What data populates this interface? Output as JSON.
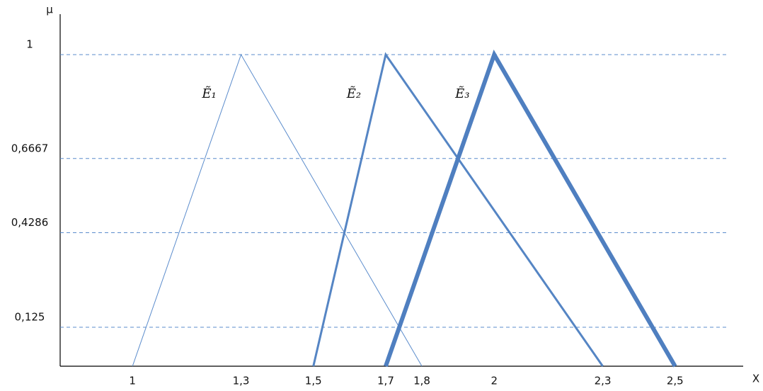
{
  "chart_data": {
    "type": "line",
    "y_label": "μ",
    "x_label": "X",
    "xlim": [
      0.8,
      2.7
    ],
    "ylim": [
      0,
      1.13
    ],
    "xticks": [
      1,
      {
        "value": 1.3,
        "label": "1,3"
      },
      {
        "value": 1.5,
        "label": "1,5"
      },
      {
        "value": 1.7,
        "label": "1,7"
      },
      {
        "value": 1.8,
        "label": "1,8"
      },
      2,
      {
        "value": 2.3,
        "label": "2,3"
      },
      {
        "value": 2.5,
        "label": "2,5"
      }
    ],
    "yticks": [
      {
        "value": 0.125,
        "label": "0,125"
      },
      {
        "value": 0.4286,
        "label": "0,4286"
      },
      {
        "value": 0.6667,
        "label": "0,6667"
      },
      1
    ],
    "grid": true,
    "series": [
      {
        "name": "Ẽ₁",
        "color": "#5b8ccc",
        "line_width": 1,
        "x": [
          1,
          1.3,
          1.8
        ],
        "values": [
          0,
          1,
          0
        ]
      },
      {
        "name": "Ẽ₂",
        "color": "#5585c4",
        "line_width": 3,
        "x": [
          1.5,
          1.7,
          2.3
        ],
        "values": [
          0,
          1,
          0
        ]
      },
      {
        "name": "Ẽ₃",
        "color": "#4f7fc0",
        "line_width": 6,
        "x": [
          1.7,
          2,
          2.5
        ],
        "values": [
          0,
          1,
          0
        ]
      }
    ]
  }
}
